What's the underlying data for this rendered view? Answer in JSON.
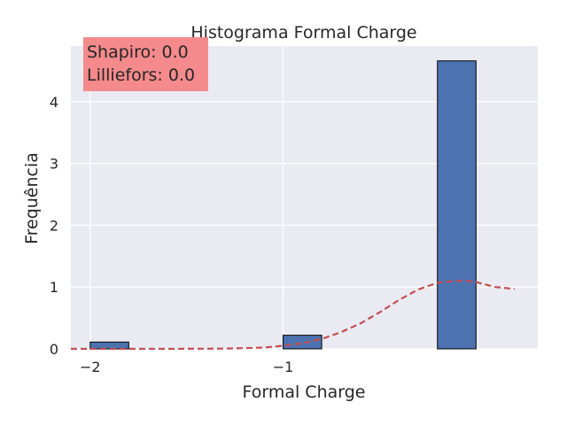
{
  "chart_data": {
    "type": "bar",
    "title": "Histograma Formal Charge",
    "xlabel": "Formal Charge",
    "ylabel": "Frequência",
    "x_ticks": [
      -2,
      -1
    ],
    "x_tick_labels": [
      "−2",
      "−1"
    ],
    "y_ticks": [
      0,
      1,
      2,
      3,
      4
    ],
    "y_tick_labels": [
      "0",
      "1",
      "2",
      "3",
      "4"
    ],
    "xlim": [
      -2.1,
      0.32
    ],
    "ylim": [
      0,
      4.9
    ],
    "bins": [
      {
        "x0": -2.0,
        "x1": -1.8,
        "value": 0.11
      },
      {
        "x0": -1.0,
        "x1": -0.8,
        "value": 0.22
      },
      {
        "x0": -0.2,
        "x1": 0.0,
        "value": 4.66
      }
    ],
    "bar_color": "#4c72b0",
    "density_curve": {
      "style": "dashed",
      "color": "#c44e52",
      "x": [
        -2.1,
        -1.6,
        -1.3,
        -1.1,
        -1.0,
        -0.9,
        -0.8,
        -0.7,
        -0.6,
        -0.5,
        -0.4,
        -0.3,
        -0.2,
        -0.1,
        -0.05,
        0.0,
        0.1,
        0.2
      ],
      "values": [
        0.0,
        0.0,
        0.005,
        0.02,
        0.05,
        0.09,
        0.16,
        0.27,
        0.41,
        0.59,
        0.79,
        0.96,
        1.07,
        1.1,
        1.1,
        1.08,
        1.0,
        0.97
      ]
    },
    "grid": true,
    "annotation": {
      "lines": [
        "Shapiro: 0.0",
        "Lilliefors: 0.0"
      ],
      "background": "#f48a8c",
      "position": "top-left"
    },
    "background": "#eaeaf2"
  }
}
